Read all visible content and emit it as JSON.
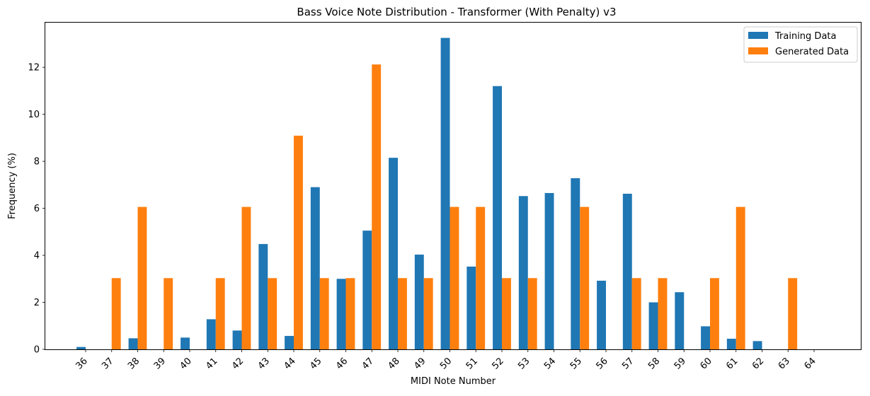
{
  "chart_data": {
    "type": "bar",
    "title": "Bass Voice Note Distribution - Transformer (With Penalty) v3",
    "xlabel": "MIDI Note Number",
    "ylabel": "Frequency (%)",
    "categories": [
      "36",
      "37",
      "38",
      "39",
      "40",
      "41",
      "42",
      "43",
      "44",
      "45",
      "46",
      "47",
      "48",
      "49",
      "50",
      "51",
      "52",
      "53",
      "54",
      "55",
      "56",
      "57",
      "58",
      "59",
      "60",
      "61",
      "62",
      "63",
      "64"
    ],
    "ylim": [
      0,
      13.9
    ],
    "yticks": [
      0,
      2,
      4,
      6,
      8,
      10,
      12
    ],
    "grid": false,
    "legend_position": "top-right",
    "series": [
      {
        "name": "Training Data",
        "color": "#1f77b4",
        "values": [
          0.1,
          0,
          0.47,
          0,
          0.5,
          1.28,
          0.8,
          4.48,
          0.57,
          6.9,
          3.0,
          5.05,
          8.15,
          4.03,
          13.25,
          3.52,
          11.2,
          6.52,
          6.65,
          7.28,
          2.92,
          6.62,
          2.0,
          2.43,
          0.98,
          0.45,
          0.35,
          0,
          0
        ]
      },
      {
        "name": "Generated Data",
        "color": "#ff7f0e",
        "values": [
          0,
          3.03,
          6.06,
          3.03,
          0,
          3.03,
          6.06,
          3.03,
          9.09,
          3.03,
          3.03,
          12.12,
          3.03,
          3.03,
          6.06,
          6.06,
          3.03,
          3.03,
          0,
          6.06,
          0,
          3.03,
          3.03,
          0,
          3.03,
          6.06,
          0,
          3.03,
          0
        ]
      }
    ]
  }
}
